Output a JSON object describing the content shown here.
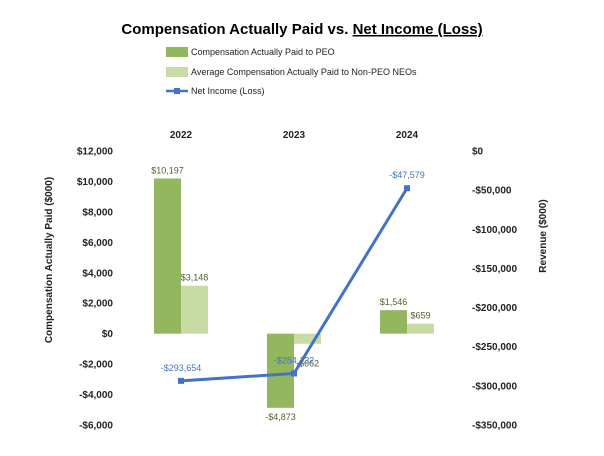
{
  "chart_data": {
    "type": "bar+line",
    "title_prefix": "Compensation Actually Paid vs. ",
    "title_underlined": "Net Income (Loss)",
    "categories": [
      "2022",
      "2023",
      "2024"
    ],
    "series": [
      {
        "name": "Compensation Actually Paid to PEO",
        "kind": "bar",
        "axis": "left",
        "color": "#93b75f",
        "values": [
          10197,
          -4873,
          1546
        ],
        "labels": [
          "$10,197",
          "-$4,873",
          "$1,546"
        ],
        "label_color": "#4f6228"
      },
      {
        "name": "Average Compensation Actually Paid to Non-PEO NEOs",
        "kind": "bar",
        "axis": "right-none",
        "color": "#c9dba5",
        "values": [
          3148,
          -662,
          659
        ],
        "labels": [
          "$3,148",
          "-$662",
          "$659"
        ],
        "label_color": "#4f6228"
      },
      {
        "name": "Net Income (Loss)",
        "kind": "line",
        "axis": "right",
        "color": "#4472c4",
        "values": [
          -293654,
          -284132,
          -47579
        ],
        "labels": [
          "-$293,654",
          "-$284,132",
          "-$47,579"
        ],
        "label_color": "#4472c4"
      }
    ],
    "left_axis": {
      "title": "Compensation Actually Paid ($000)",
      "range": [
        -6000,
        12000
      ],
      "ticks": [
        12000,
        10000,
        8000,
        6000,
        4000,
        2000,
        0,
        -2000,
        -4000,
        -6000
      ],
      "tick_labels": [
        "$12,000",
        "$10,000",
        "$8,000",
        "$6,000",
        "$4,000",
        "$2,000",
        "$0",
        "-$2,000",
        "-$4,000",
        "-$6,000"
      ]
    },
    "right_axis": {
      "title": "Revenue ($000)",
      "range": [
        -350000,
        0
      ],
      "ticks": [
        0,
        -50000,
        -100000,
        -150000,
        -200000,
        -250000,
        -300000,
        -350000
      ],
      "tick_labels": [
        "$0",
        "-$50,000",
        "-$100,000",
        "-$150,000",
        "-$200,000",
        "-$250,000",
        "-$300,000",
        "-$350,000"
      ]
    },
    "grid": false,
    "legend_position": "top-left"
  }
}
